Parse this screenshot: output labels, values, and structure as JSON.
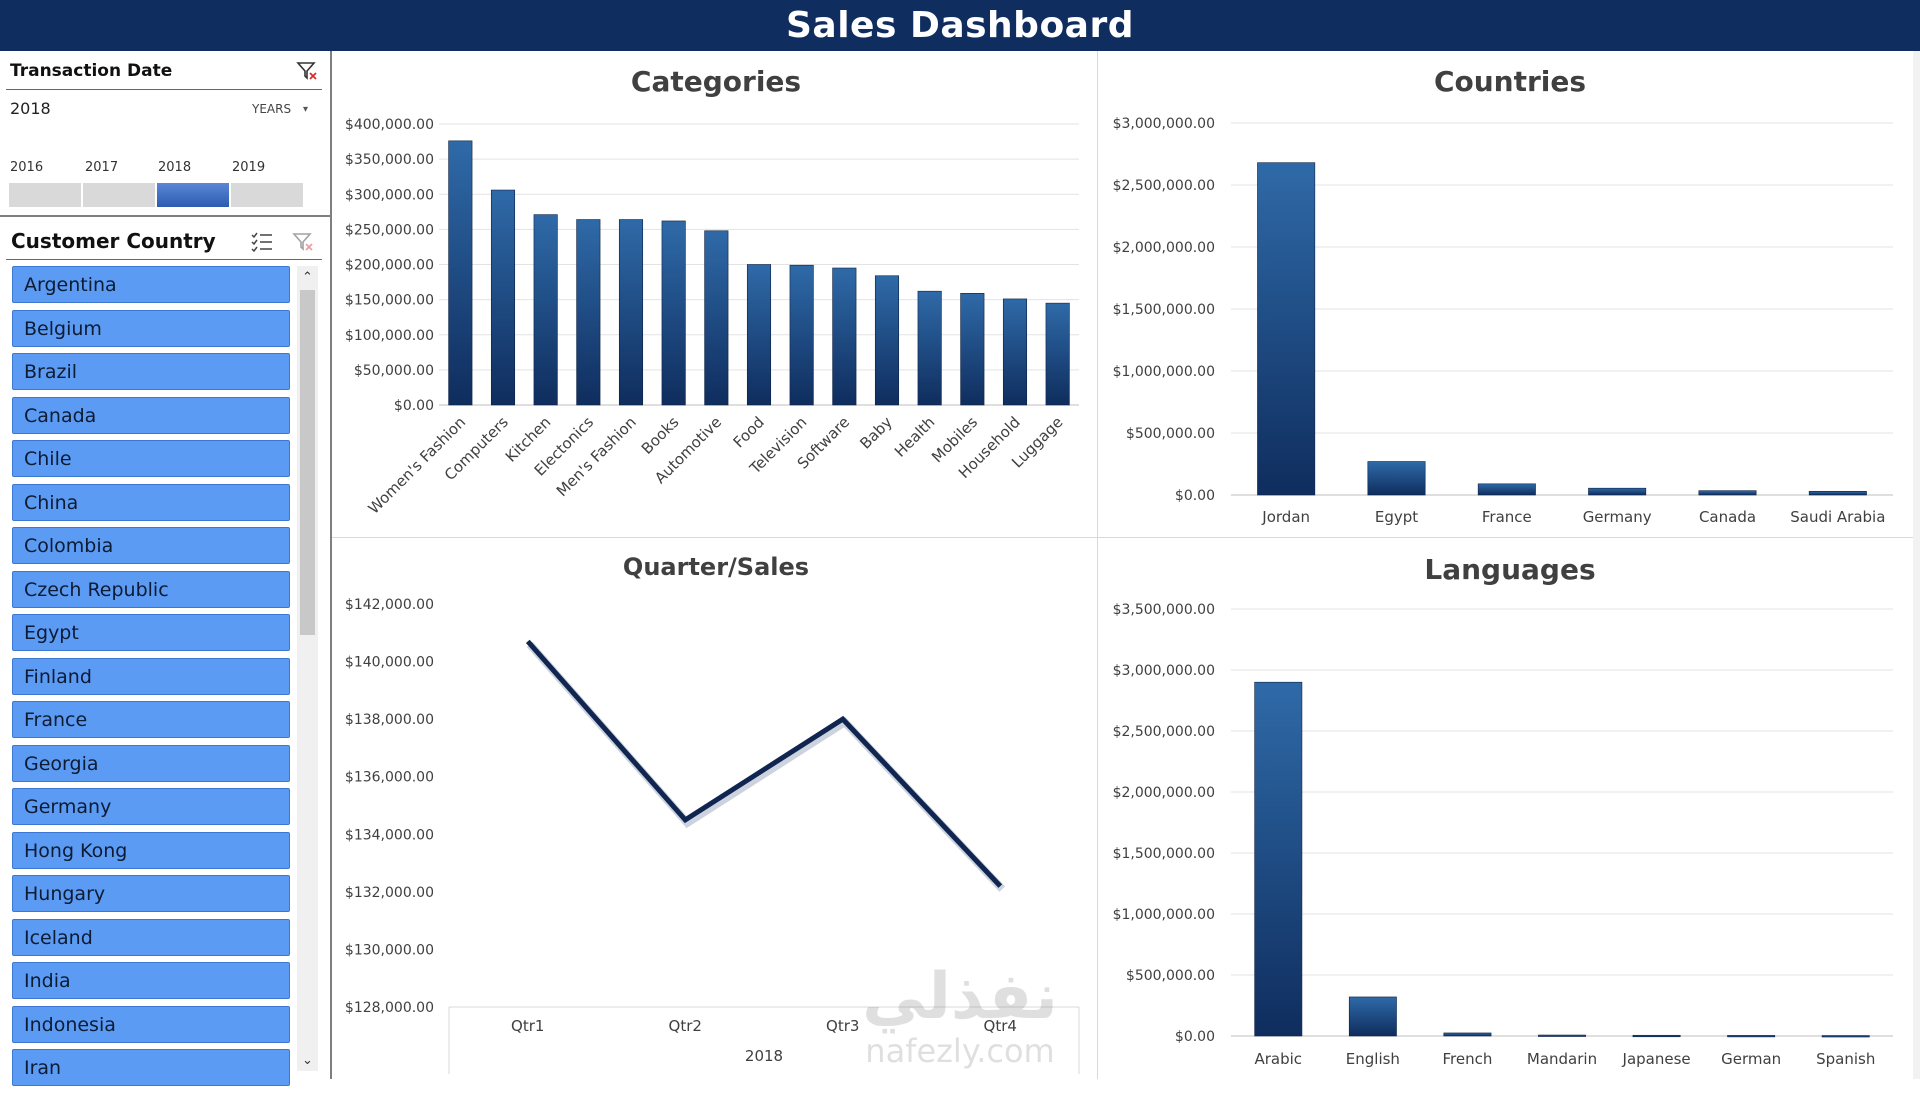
{
  "header": {
    "title": "Sales Dashboard"
  },
  "timeline": {
    "title": "Transaction  Date",
    "selected": "2018",
    "level": "YEARS",
    "years": [
      "2016",
      "2017",
      "2018",
      "2019"
    ],
    "selected_index": 2
  },
  "slicer": {
    "title": "Customer Country",
    "items": [
      "Argentina",
      "Belgium",
      "Brazil",
      "Canada",
      "Chile",
      "China",
      "Colombia",
      "Czech Republic",
      "Egypt",
      "Finland",
      "France",
      "Georgia",
      "Germany",
      "Hong Kong",
      "Hungary",
      "Iceland",
      "India",
      "Indonesia",
      "Iran"
    ]
  },
  "colors": {
    "header": "#0f2d5e",
    "bar_top": "#2f6aa8",
    "bar_bottom": "#0f2d5e",
    "line": "#10254f",
    "slicer_item": "#5b9bf3"
  },
  "watermark": {
    "arabic": "نفذلي",
    "latin": "nafezly.com"
  },
  "chart_data": [
    {
      "id": "categories",
      "type": "bar",
      "title": "Categories",
      "categories": [
        "Women's Fashion",
        "Computers",
        "Kitchen",
        "Electonics",
        "Men's Fashion",
        "Books",
        "Automotive",
        "Food",
        "Television",
        "Software",
        "Baby",
        "Health",
        "Mobiles",
        "Household",
        "Luggage"
      ],
      "values": [
        376000,
        306000,
        271000,
        264000,
        264000,
        262000,
        248000,
        200000,
        199000,
        195000,
        184000,
        162000,
        159000,
        151000,
        145000
      ],
      "ylim": [
        0,
        400000
      ],
      "ticks": [
        "$0.00",
        "$50,000.00",
        "$100,000.00",
        "$150,000.00",
        "$200,000.00",
        "$250,000.00",
        "$300,000.00",
        "$350,000.00",
        "$400,000.00"
      ],
      "grid": true
    },
    {
      "id": "countries",
      "type": "bar",
      "title": "Countries",
      "categories": [
        "Jordan",
        "Egypt",
        "France",
        "Germany",
        "Canada",
        "Saudi Arabia"
      ],
      "values": [
        2680000,
        270000,
        90000,
        55000,
        35000,
        30000
      ],
      "ylim": [
        0,
        3000000
      ],
      "ticks": [
        "$0.00",
        "$500,000.00",
        "$1,000,000.00",
        "$1,500,000.00",
        "$2,000,000.00",
        "$2,500,000.00",
        "$3,000,000.00"
      ],
      "grid": true
    },
    {
      "id": "quarters",
      "type": "line",
      "title": "Quarter/Sales",
      "categories": [
        "Qtr1",
        "Qtr2",
        "Qtr3",
        "Qtr4"
      ],
      "group_label": "2018",
      "values": [
        140700,
        134500,
        138000,
        132200
      ],
      "ylim": [
        128000,
        142000
      ],
      "ticks": [
        "$128,000.00",
        "$130,000.00",
        "$132,000.00",
        "$134,000.00",
        "$136,000.00",
        "$138,000.00",
        "$140,000.00",
        "$142,000.00"
      ],
      "grid": false
    },
    {
      "id": "languages",
      "type": "bar",
      "title": "Languages",
      "categories": [
        "Arabic",
        "English",
        "French",
        "Mandarin",
        "Japanese",
        "German",
        "Spanish"
      ],
      "values": [
        2900000,
        320000,
        25000,
        8000,
        6000,
        5000,
        4000
      ],
      "ylim": [
        0,
        3500000
      ],
      "ticks": [
        "$0.00",
        "$500,000.00",
        "$1,000,000.00",
        "$1,500,000.00",
        "$2,000,000.00",
        "$2,500,000.00",
        "$3,000,000.00",
        "$3,500,000.00"
      ],
      "grid": true
    }
  ]
}
